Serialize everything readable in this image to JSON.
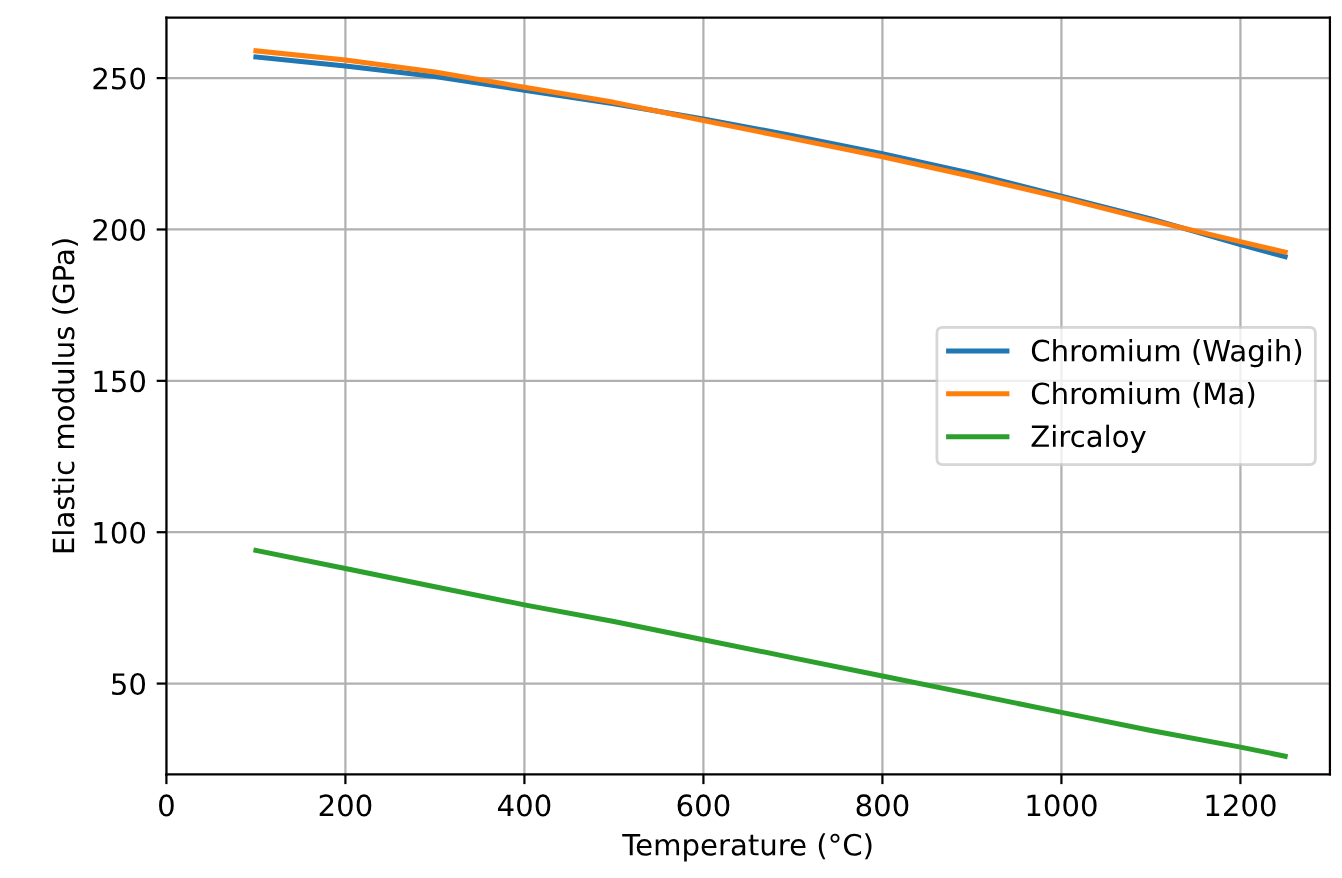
{
  "chart_data": {
    "type": "line",
    "xlabel": "Temperature (°C)",
    "ylabel": "Elastic modulus (GPa)",
    "x": [
      100,
      200,
      300,
      400,
      500,
      600,
      700,
      800,
      900,
      1000,
      1100,
      1200,
      1250
    ],
    "series": [
      {
        "name": "Chromium (Wagih)",
        "color": "#1f77b4",
        "values": [
          257,
          254,
          250.5,
          246,
          241.5,
          236.5,
          231,
          225,
          218.5,
          211,
          203.5,
          195,
          191
        ]
      },
      {
        "name": "Chromium (Ma)",
        "color": "#ff7f0e",
        "values": [
          259,
          256,
          252,
          247,
          242,
          236,
          230,
          224,
          217.5,
          210.5,
          203,
          196,
          192.5
        ]
      },
      {
        "name": "Zircaloy",
        "color": "#2ca02c",
        "values": [
          94,
          88,
          82,
          76,
          70.5,
          64.5,
          58.5,
          52.5,
          46.5,
          40.5,
          34.5,
          29,
          26
        ]
      }
    ],
    "xlim": [
      0,
      1300
    ],
    "xticks": [
      0,
      200,
      400,
      600,
      800,
      1000,
      1200
    ],
    "ylim": [
      20,
      270
    ],
    "yticks": [
      50,
      100,
      150,
      200,
      250
    ],
    "grid": true,
    "legend": "right",
    "marker": "none",
    "line_style": "solid"
  }
}
